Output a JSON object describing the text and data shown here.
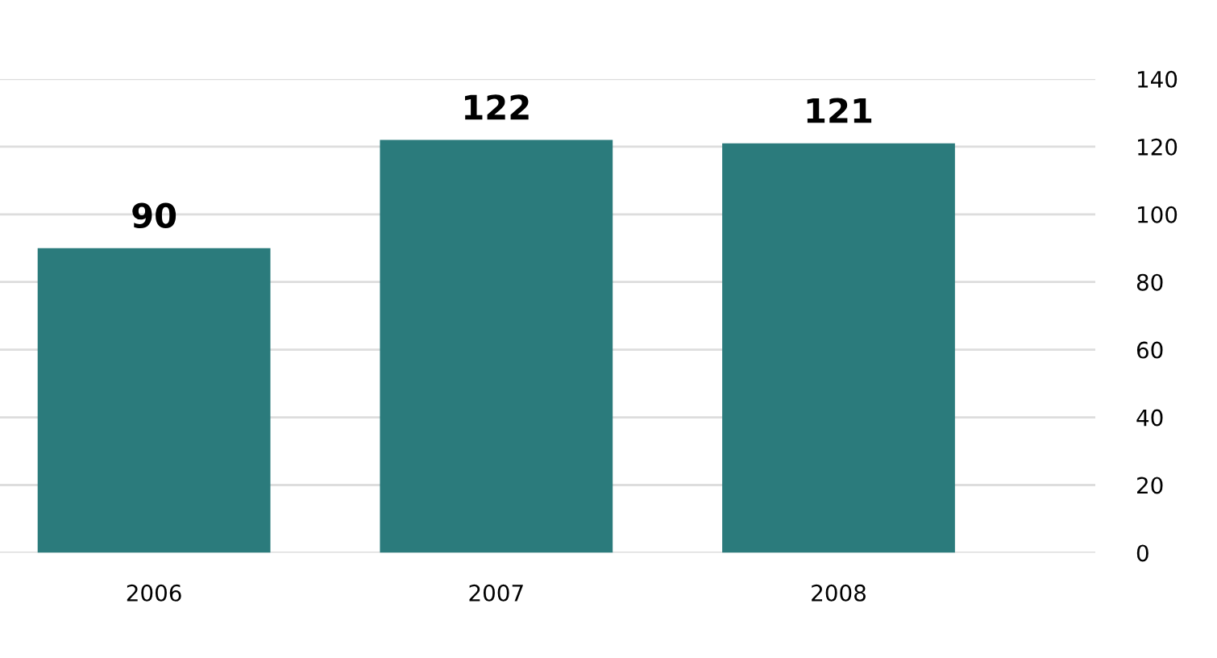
{
  "chart_data": {
    "type": "bar",
    "categories": [
      "2006",
      "2007",
      "2008"
    ],
    "values": [
      90,
      122,
      121
    ],
    "color": "#2b7b7c",
    "ylim": [
      0,
      140
    ],
    "yticks": [
      0,
      20,
      40,
      60,
      80,
      100,
      120,
      140
    ],
    "grid": "y",
    "data_labels": true
  }
}
